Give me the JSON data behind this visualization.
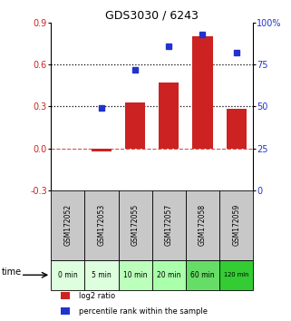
{
  "title": "GDS3030 / 6243",
  "samples": [
    "GSM172052",
    "GSM172053",
    "GSM172055",
    "GSM172057",
    "GSM172058",
    "GSM172059"
  ],
  "time_labels": [
    "0 min",
    "5 min",
    "10 min",
    "20 min",
    "60 min",
    "120 min"
  ],
  "log2_ratio": [
    0.0,
    -0.02,
    0.33,
    0.47,
    0.8,
    0.28
  ],
  "percentile_rank": [
    null,
    49,
    72,
    86,
    93,
    82
  ],
  "bar_color": "#cc2222",
  "dot_color": "#2233cc",
  "ylim_left": [
    -0.3,
    0.9
  ],
  "ylim_right": [
    0,
    100
  ],
  "yticks_left": [
    -0.3,
    0.0,
    0.3,
    0.6,
    0.9
  ],
  "yticks_right": [
    0,
    25,
    50,
    75,
    100
  ],
  "ytick_labels_right": [
    "0",
    "25",
    "50",
    "75",
    "100%"
  ],
  "hline_zero": 0.0,
  "hline_dotted1": 0.3,
  "hline_dotted2": 0.6,
  "bg_color": "#ffffff",
  "gsm_bg": "#c8c8c8",
  "time_bg_colors": [
    "#ddffdd",
    "#ddffdd",
    "#bbffbb",
    "#aaffaa",
    "#66dd66",
    "#33cc33"
  ],
  "legend_log2": "log2 ratio",
  "legend_pct": "percentile rank within the sample",
  "xlabel_time": "time"
}
